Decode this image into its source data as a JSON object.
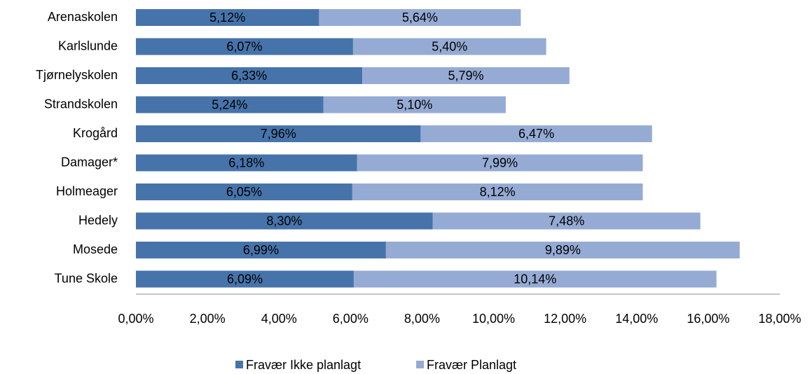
{
  "chart_data": {
    "type": "stacked-barh",
    "categories": [
      "Arenaskolen",
      "Karlslunde",
      "Tjørnelyskolen",
      "Strandskolen",
      "Krogård",
      "Damager*",
      "Holmeager",
      "Hedely",
      "Mosede",
      "Tune Skole"
    ],
    "series": [
      {
        "name": "Fravær Ikke planlagt",
        "color": "#4673aa",
        "values": [
          5.12,
          6.07,
          6.33,
          5.24,
          7.96,
          6.18,
          6.05,
          8.3,
          6.99,
          6.09
        ],
        "value_labels": [
          "5,12%",
          "6,07%",
          "6,33%",
          "5,24%",
          "7,96%",
          "6,18%",
          "6,05%",
          "8,30%",
          "6,99%",
          "6,09%"
        ]
      },
      {
        "name": "Fravær Planlagt",
        "color": "#95abd4",
        "values": [
          5.64,
          5.4,
          5.79,
          5.1,
          6.47,
          7.99,
          8.12,
          7.48,
          9.89,
          10.14
        ],
        "value_labels": [
          "5,64%",
          "5,40%",
          "5,79%",
          "5,10%",
          "6,47%",
          "7,99%",
          "8,12%",
          "7,48%",
          "9,89%",
          "10,14%"
        ]
      }
    ],
    "xlim": [
      0,
      18
    ],
    "xticks": [
      {
        "value": 0,
        "label": "0,00%"
      },
      {
        "value": 2,
        "label": "2,00%"
      },
      {
        "value": 4,
        "label": "4,00%"
      },
      {
        "value": 6,
        "label": "6,00%"
      },
      {
        "value": 8,
        "label": "8,00%"
      },
      {
        "value": 10,
        "label": "10,00%"
      },
      {
        "value": 12,
        "label": "12,00%"
      },
      {
        "value": 14,
        "label": "14,00%"
      },
      {
        "value": 16,
        "label": "16,00%"
      },
      {
        "value": 18,
        "label": "18,00%"
      }
    ],
    "legend": "bottom",
    "grid": false
  }
}
